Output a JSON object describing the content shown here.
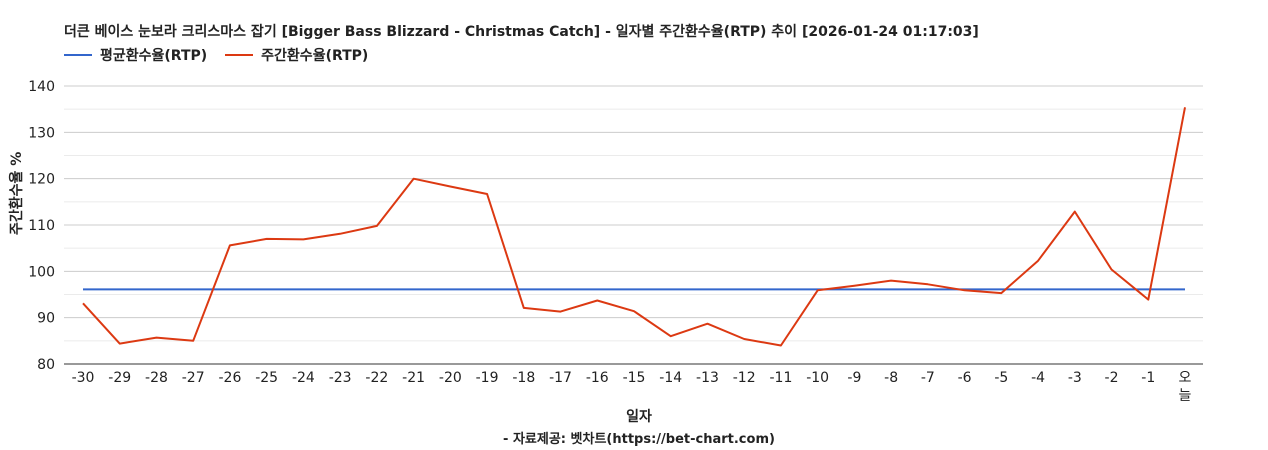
{
  "chart_data": {
    "type": "line",
    "title": "더큰 베이스 눈보라 크리스마스 잡기 [Bigger Bass Blizzard - Christmas Catch] - 일자별 주간환수율(RTP) 추이 [2026-01-24 01:17:03]",
    "xlabel": "일자",
    "ylabel": "주간환수율 %",
    "source": "- 자료제공: 벳차트(https://bet-chart.com)",
    "categories": [
      "-30",
      "-29",
      "-28",
      "-27",
      "-26",
      "-25",
      "-24",
      "-23",
      "-22",
      "-21",
      "-20",
      "-19",
      "-18",
      "-17",
      "-16",
      "-15",
      "-14",
      "-13",
      "-12",
      "-11",
      "-10",
      "-9",
      "-8",
      "-7",
      "-6",
      "-5",
      "-4",
      "-3",
      "-2",
      "-1",
      "오늘"
    ],
    "ylim": [
      80,
      140
    ],
    "yticks": [
      80,
      90,
      100,
      110,
      120,
      130,
      140
    ],
    "grid": true,
    "legend_position": "top-left",
    "series": [
      {
        "name": "평균환수율(RTP)",
        "color": "#3366cc",
        "values": [
          96.1,
          96.1,
          96.1,
          96.1,
          96.1,
          96.1,
          96.1,
          96.1,
          96.1,
          96.1,
          96.1,
          96.1,
          96.1,
          96.1,
          96.1,
          96.1,
          96.1,
          96.1,
          96.1,
          96.1,
          96.1,
          96.1,
          96.1,
          96.1,
          96.1,
          96.1,
          96.1,
          96.1,
          96.1,
          96.1,
          96.1
        ]
      },
      {
        "name": "주간환수율(RTP)",
        "color": "#dc3912",
        "values": [
          93.1,
          84.4,
          85.7,
          85.0,
          105.6,
          107.0,
          106.9,
          108.1,
          109.8,
          120.0,
          118.3,
          116.7,
          92.1,
          91.3,
          93.7,
          91.4,
          86.0,
          88.7,
          85.4,
          84.0,
          95.9,
          96.9,
          98.0,
          97.2,
          95.9,
          95.3,
          102.3,
          112.9,
          100.4,
          93.9,
          135.4
        ]
      }
    ]
  }
}
